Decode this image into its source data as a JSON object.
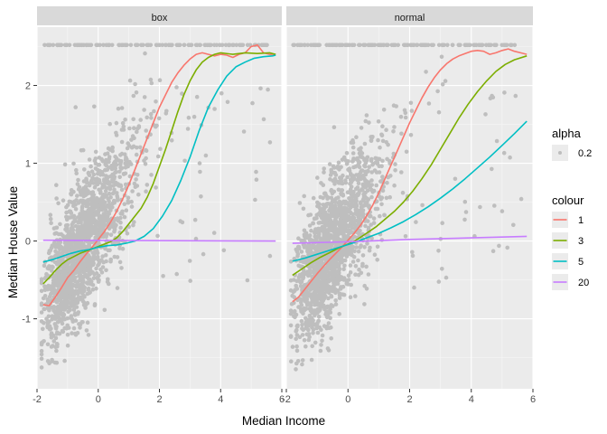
{
  "chart_data": {
    "type": "scatter",
    "xlabel": "Median Income",
    "ylabel": "Median House Value",
    "xlim": [
      -2,
      6
    ],
    "ylim": [
      -1.9,
      2.75
    ],
    "x_ticks": [
      "-2",
      "0",
      "2",
      "4",
      "6"
    ],
    "y_ticks": [
      "-1",
      "0",
      "1",
      "2"
    ],
    "x_tick_values": [
      -2,
      0,
      2,
      4,
      6
    ],
    "y_tick_values": [
      -1,
      0,
      1,
      2
    ],
    "grid": true,
    "legend_position": "right",
    "point_color": "#bebebe",
    "facets": [
      {
        "label": "box",
        "series": [
          {
            "name": "1",
            "color": "#F8766D",
            "points": [
              [
                -1.8,
                -0.82
              ],
              [
                -1.6,
                -0.83
              ],
              [
                -1.4,
                -0.72
              ],
              [
                -1.2,
                -0.6
              ],
              [
                -1.0,
                -0.47
              ],
              [
                -0.8,
                -0.38
              ],
              [
                -0.6,
                -0.27
              ],
              [
                -0.4,
                -0.17
              ],
              [
                -0.2,
                -0.08
              ],
              [
                0.0,
                0.02
              ],
              [
                0.2,
                0.12
              ],
              [
                0.4,
                0.24
              ],
              [
                0.6,
                0.38
              ],
              [
                0.8,
                0.54
              ],
              [
                1.0,
                0.72
              ],
              [
                1.2,
                0.92
              ],
              [
                1.4,
                1.12
              ],
              [
                1.6,
                1.32
              ],
              [
                1.8,
                1.52
              ],
              [
                2.0,
                1.72
              ],
              [
                2.2,
                1.88
              ],
              [
                2.4,
                2.04
              ],
              [
                2.6,
                2.16
              ],
              [
                2.8,
                2.26
              ],
              [
                3.0,
                2.34
              ],
              [
                3.2,
                2.4
              ],
              [
                3.4,
                2.42
              ],
              [
                3.6,
                2.4
              ],
              [
                3.8,
                2.38
              ],
              [
                4.0,
                2.4
              ],
              [
                4.2,
                2.39
              ],
              [
                4.4,
                2.36
              ],
              [
                4.6,
                2.4
              ],
              [
                4.8,
                2.42
              ],
              [
                5.0,
                2.5
              ],
              [
                5.2,
                2.52
              ],
              [
                5.4,
                2.42
              ],
              [
                5.6,
                2.4
              ],
              [
                5.8,
                2.4
              ]
            ]
          },
          {
            "name": "3",
            "color": "#7CAE00",
            "points": [
              [
                -1.8,
                -0.55
              ],
              [
                -1.6,
                -0.47
              ],
              [
                -1.4,
                -0.38
              ],
              [
                -1.2,
                -0.3
              ],
              [
                -1.0,
                -0.24
              ],
              [
                -0.8,
                -0.2
              ],
              [
                -0.6,
                -0.16
              ],
              [
                -0.4,
                -0.13
              ],
              [
                -0.2,
                -0.1
              ],
              [
                0.0,
                -0.07
              ],
              [
                0.2,
                -0.04
              ],
              [
                0.4,
                -0.01
              ],
              [
                0.6,
                0.04
              ],
              [
                0.8,
                0.12
              ],
              [
                1.0,
                0.22
              ],
              [
                1.2,
                0.32
              ],
              [
                1.4,
                0.42
              ],
              [
                1.6,
                0.56
              ],
              [
                1.8,
                0.74
              ],
              [
                2.0,
                0.96
              ],
              [
                2.2,
                1.18
              ],
              [
                2.4,
                1.42
              ],
              [
                2.6,
                1.66
              ],
              [
                2.8,
                1.88
              ],
              [
                3.0,
                2.06
              ],
              [
                3.2,
                2.2
              ],
              [
                3.4,
                2.3
              ],
              [
                3.6,
                2.36
              ],
              [
                3.8,
                2.4
              ],
              [
                4.0,
                2.42
              ],
              [
                4.4,
                2.4
              ],
              [
                4.8,
                2.42
              ],
              [
                5.2,
                2.41
              ],
              [
                5.6,
                2.42
              ],
              [
                5.8,
                2.4
              ]
            ]
          },
          {
            "name": "5",
            "color": "#00BFC4",
            "points": [
              [
                -1.8,
                -0.27
              ],
              [
                -1.5,
                -0.24
              ],
              [
                -1.2,
                -0.2
              ],
              [
                -0.9,
                -0.16
              ],
              [
                -0.6,
                -0.13
              ],
              [
                -0.3,
                -0.11
              ],
              [
                0.0,
                -0.08
              ],
              [
                0.3,
                -0.06
              ],
              [
                0.6,
                -0.05
              ],
              [
                0.9,
                -0.03
              ],
              [
                1.2,
                0.0
              ],
              [
                1.5,
                0.06
              ],
              [
                1.8,
                0.16
              ],
              [
                2.1,
                0.32
              ],
              [
                2.4,
                0.52
              ],
              [
                2.7,
                0.78
              ],
              [
                3.0,
                1.08
              ],
              [
                3.3,
                1.42
              ],
              [
                3.6,
                1.72
              ],
              [
                3.9,
                1.94
              ],
              [
                4.2,
                2.12
              ],
              [
                4.5,
                2.24
              ],
              [
                4.8,
                2.3
              ],
              [
                5.1,
                2.35
              ],
              [
                5.4,
                2.37
              ],
              [
                5.7,
                2.38
              ],
              [
                5.8,
                2.39
              ]
            ]
          },
          {
            "name": "20",
            "color": "#C77CFF",
            "points": [
              [
                -1.8,
                0.01
              ],
              [
                5.8,
                0.0
              ]
            ]
          }
        ]
      },
      {
        "label": "normal",
        "series": [
          {
            "name": "1",
            "color": "#F8766D",
            "points": [
              [
                -1.8,
                -0.78
              ],
              [
                -1.6,
                -0.72
              ],
              [
                -1.4,
                -0.62
              ],
              [
                -1.2,
                -0.52
              ],
              [
                -1.0,
                -0.42
              ],
              [
                -0.8,
                -0.33
              ],
              [
                -0.6,
                -0.24
              ],
              [
                -0.4,
                -0.16
              ],
              [
                -0.2,
                -0.08
              ],
              [
                0.0,
                0.01
              ],
              [
                0.2,
                0.1
              ],
              [
                0.4,
                0.2
              ],
              [
                0.6,
                0.32
              ],
              [
                0.8,
                0.46
              ],
              [
                1.0,
                0.62
              ],
              [
                1.2,
                0.8
              ],
              [
                1.4,
                0.98
              ],
              [
                1.6,
                1.16
              ],
              [
                1.8,
                1.34
              ],
              [
                2.0,
                1.52
              ],
              [
                2.2,
                1.68
              ],
              [
                2.4,
                1.84
              ],
              [
                2.6,
                1.98
              ],
              [
                2.8,
                2.1
              ],
              [
                3.0,
                2.2
              ],
              [
                3.2,
                2.28
              ],
              [
                3.4,
                2.34
              ],
              [
                3.6,
                2.38
              ],
              [
                3.8,
                2.41
              ],
              [
                4.0,
                2.44
              ],
              [
                4.2,
                2.45
              ],
              [
                4.4,
                2.44
              ],
              [
                4.6,
                2.4
              ],
              [
                4.8,
                2.42
              ],
              [
                5.0,
                2.45
              ],
              [
                5.2,
                2.47
              ],
              [
                5.4,
                2.44
              ],
              [
                5.6,
                2.42
              ],
              [
                5.8,
                2.4
              ]
            ]
          },
          {
            "name": "3",
            "color": "#7CAE00",
            "points": [
              [
                -1.8,
                -0.44
              ],
              [
                -1.5,
                -0.36
              ],
              [
                -1.2,
                -0.28
              ],
              [
                -0.9,
                -0.21
              ],
              [
                -0.6,
                -0.15
              ],
              [
                -0.3,
                -0.09
              ],
              [
                0.0,
                -0.04
              ],
              [
                0.3,
                0.02
              ],
              [
                0.6,
                0.1
              ],
              [
                0.9,
                0.18
              ],
              [
                1.2,
                0.28
              ],
              [
                1.5,
                0.38
              ],
              [
                1.8,
                0.5
              ],
              [
                2.1,
                0.64
              ],
              [
                2.4,
                0.8
              ],
              [
                2.7,
                0.98
              ],
              [
                3.0,
                1.18
              ],
              [
                3.3,
                1.38
              ],
              [
                3.6,
                1.58
              ],
              [
                3.9,
                1.76
              ],
              [
                4.2,
                1.92
              ],
              [
                4.5,
                2.06
              ],
              [
                4.8,
                2.18
              ],
              [
                5.1,
                2.27
              ],
              [
                5.4,
                2.33
              ],
              [
                5.8,
                2.38
              ]
            ]
          },
          {
            "name": "5",
            "color": "#00BFC4",
            "points": [
              [
                -1.8,
                -0.26
              ],
              [
                -1.4,
                -0.22
              ],
              [
                -1.0,
                -0.17
              ],
              [
                -0.6,
                -0.12
              ],
              [
                -0.2,
                -0.07
              ],
              [
                0.2,
                -0.02
              ],
              [
                0.6,
                0.04
              ],
              [
                1.0,
                0.1
              ],
              [
                1.4,
                0.17
              ],
              [
                1.8,
                0.25
              ],
              [
                2.2,
                0.34
              ],
              [
                2.6,
                0.44
              ],
              [
                3.0,
                0.55
              ],
              [
                3.4,
                0.67
              ],
              [
                3.8,
                0.8
              ],
              [
                4.2,
                0.94
              ],
              [
                4.6,
                1.08
              ],
              [
                5.0,
                1.23
              ],
              [
                5.4,
                1.38
              ],
              [
                5.8,
                1.54
              ]
            ]
          },
          {
            "name": "20",
            "color": "#C77CFF",
            "points": [
              [
                -1.8,
                -0.03
              ],
              [
                0.0,
                -0.01
              ],
              [
                2.0,
                0.02
              ],
              [
                4.0,
                0.04
              ],
              [
                5.8,
                0.06
              ]
            ]
          }
        ]
      }
    ]
  },
  "legend": {
    "alpha": {
      "title": "alpha",
      "items": [
        {
          "label": "0.2",
          "color": "#bebebe"
        }
      ]
    },
    "colour": {
      "title": "colour",
      "items": [
        {
          "label": "1",
          "color": "#F8766D"
        },
        {
          "label": "3",
          "color": "#7CAE00"
        },
        {
          "label": "5",
          "color": "#00BFC4"
        },
        {
          "label": "20",
          "color": "#C77CFF"
        }
      ]
    }
  }
}
